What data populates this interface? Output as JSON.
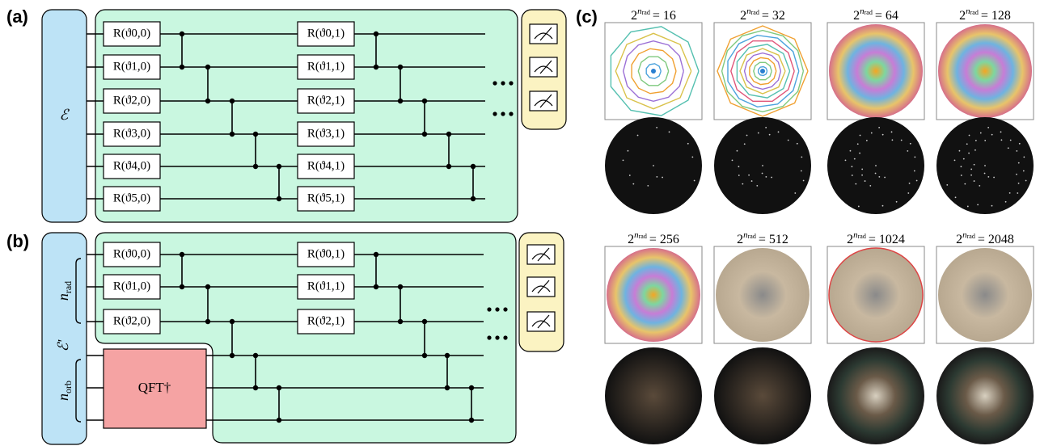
{
  "panels": [
    {
      "label": "(a)",
      "encoder": "ℰ",
      "gates": [
        [
          "R(ϑ0,0)",
          "R(ϑ1,0)",
          "R(ϑ2,0)",
          "R(ϑ3,0)",
          "R(ϑ4,0)",
          "R(ϑ5,0)"
        ],
        [
          "R(ϑ0,1)",
          "R(ϑ1,1)",
          "R(ϑ2,1)",
          "R(ϑ3,1)",
          "R(ϑ4,1)",
          "R(ϑ5,1)"
        ]
      ]
    },
    {
      "label": "(b)",
      "encoder": "ℰ'",
      "registers": [
        {
          "symbol": "n",
          "sub": "rad"
        },
        {
          "symbol": "n",
          "sub": "orb"
        }
      ],
      "gates": [
        [
          "R(ϑ0,0)",
          "R(ϑ1,0)",
          "R(ϑ2,0)"
        ],
        [
          "R(ϑ0,1)",
          "R(ϑ1,1)",
          "R(ϑ2,1)"
        ]
      ],
      "qft": "QFT†"
    },
    {
      "label": "(c)",
      "captions": [
        {
          "base": "2",
          "exp": "n",
          "exp_sub": "rad",
          "rest": "= 16"
        },
        {
          "base": "2",
          "exp": "n",
          "exp_sub": "rad",
          "rest": "= 32"
        },
        {
          "base": "2",
          "exp": "n",
          "exp_sub": "rad",
          "rest": "= 64"
        },
        {
          "base": "2",
          "exp": "n",
          "exp_sub": "rad",
          "rest": "= 128"
        },
        {
          "base": "2",
          "exp": "n",
          "exp_sub": "rad",
          "rest": "= 256"
        },
        {
          "base": "2",
          "exp": "n",
          "exp_sub": "rad",
          "rest": "= 512"
        },
        {
          "base": "2",
          "exp": "n",
          "exp_sub": "rad",
          "rest": "= 1024"
        },
        {
          "base": "2",
          "exp": "n",
          "exp_sub": "rad",
          "rest": "= 2048"
        }
      ]
    }
  ]
}
